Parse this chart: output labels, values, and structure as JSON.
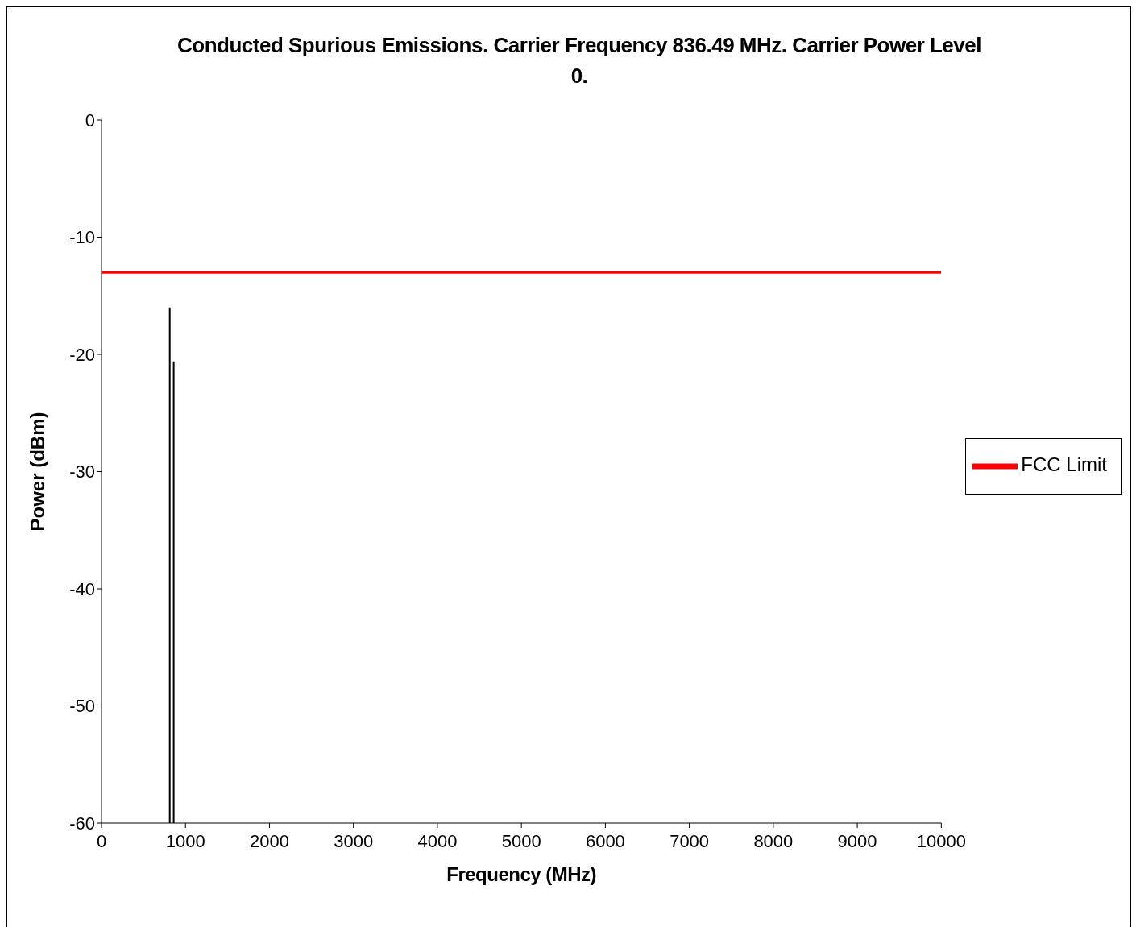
{
  "chart_data": {
    "type": "bar",
    "title": "Conducted Spurious Emissions. Carrier Frequency 836.49 MHz. Carrier Power Level 0.",
    "xlabel": "Frequency (MHz)",
    "ylabel": "Power (dBm)",
    "series": [
      {
        "color": "#000000",
        "x": [
          817,
          864
        ],
        "base": [
          -60,
          -60
        ],
        "values": [
          44,
          39.4
        ]
      },
      {
        "type": "line",
        "name": "FCC Limit",
        "color": "#ff0000",
        "x": [
          0,
          10000
        ],
        "values": [
          -13,
          -13
        ]
      }
    ],
    "xlim": [
      0,
      10000
    ],
    "xticks": [
      0,
      1000,
      2000,
      3000,
      4000,
      5000,
      6000,
      7000,
      8000,
      9000,
      10000
    ],
    "ylim": [
      -60,
      0
    ],
    "yticks": [
      -60,
      -50,
      -40,
      -30,
      -20,
      -10,
      0
    ],
    "grid": false,
    "legend": "right",
    "marker": "none"
  }
}
